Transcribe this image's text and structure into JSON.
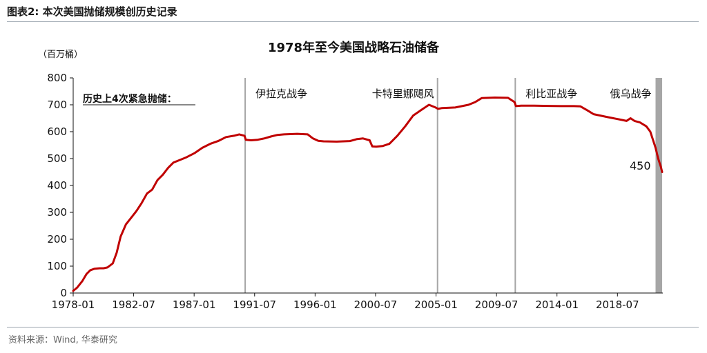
{
  "figure_label": "图表2:   本次美国抛储规模创历史记录",
  "source": "资料来源：Wind, 华泰研究",
  "chart_data": {
    "type": "line",
    "title": "1978年至今美国战略石油储备",
    "unit_label": "（百万桶）",
    "ylim": [
      0,
      800
    ],
    "y_ticks": [
      0,
      100,
      200,
      300,
      400,
      500,
      600,
      700,
      800
    ],
    "x_ticks": [
      "1978-01",
      "1982-07",
      "1987-01",
      "1991-07",
      "1996-01",
      "2000-07",
      "2005-01",
      "2009-07",
      "2014-01",
      "2018-07"
    ],
    "note": "历史上4次紧急抛储：",
    "end_label": "450",
    "line_color": "#c00000",
    "event_color": "#a6a6a6",
    "events": [
      {
        "label": "伊拉克战争",
        "start": 1991.0,
        "end": 1991.1
      },
      {
        "label": "卡特里娜飓风",
        "start": 2005.6,
        "end": 2005.7
      },
      {
        "label": "利比亚战争",
        "start": 2011.5,
        "end": 2011.6
      },
      {
        "label": "俄乌战争",
        "start": 2022.2,
        "end": 2022.7
      }
    ],
    "series": [
      {
        "x": [
          1978.0,
          1978.3,
          1978.7,
          1979.0,
          1979.3,
          1979.6,
          1980.0,
          1980.3,
          1980.6,
          1981.0,
          1981.3,
          1981.6,
          1982.0,
          1982.4,
          1982.8,
          1983.2,
          1983.6,
          1984.0,
          1984.4,
          1984.8,
          1985.2,
          1985.6,
          1986.0,
          1986.6,
          1987.2,
          1987.8,
          1988.4,
          1989.0,
          1989.6,
          1990.2,
          1990.6,
          1991.0,
          1991.1,
          1991.5,
          1992.0,
          1992.5,
          1993.0,
          1993.5,
          1994.0,
          1995.0,
          1995.8,
          1996.2,
          1996.6,
          1997.0,
          1998.0,
          1999.0,
          1999.5,
          2000.0,
          2000.5,
          2000.7,
          2001.0,
          2001.5,
          2002.0,
          2002.6,
          2003.2,
          2003.8,
          2004.4,
          2005.0,
          2005.5,
          2005.7,
          2006.0,
          2007.0,
          2008.0,
          2008.5,
          2009.0,
          2010.0,
          2011.0,
          2011.5,
          2011.6,
          2012.0,
          2013.0,
          2014.0,
          2015.0,
          2016.0,
          2016.5,
          2017.0,
          2017.5,
          2018.0,
          2018.5,
          2019.0,
          2019.5,
          2020.0,
          2020.3,
          2020.6,
          2021.0,
          2021.5,
          2021.8,
          2022.0,
          2022.2,
          2022.4,
          2022.6,
          2022.7
        ],
        "values": [
          8,
          20,
          45,
          70,
          85,
          90,
          92,
          92,
          95,
          110,
          150,
          210,
          255,
          280,
          305,
          335,
          370,
          385,
          420,
          440,
          465,
          485,
          493,
          505,
          520,
          540,
          555,
          565,
          580,
          585,
          590,
          585,
          570,
          568,
          570,
          575,
          582,
          588,
          590,
          592,
          590,
          575,
          566,
          564,
          563,
          565,
          572,
          575,
          568,
          545,
          544,
          547,
          555,
          585,
          620,
          660,
          680,
          700,
          690,
          685,
          688,
          690,
          700,
          710,
          725,
          727,
          726,
          710,
          695,
          697,
          697,
          696,
          695,
          695,
          694,
          680,
          665,
          660,
          655,
          650,
          645,
          640,
          650,
          640,
          635,
          620,
          600,
          570,
          540,
          500,
          470,
          450
        ]
      }
    ]
  }
}
